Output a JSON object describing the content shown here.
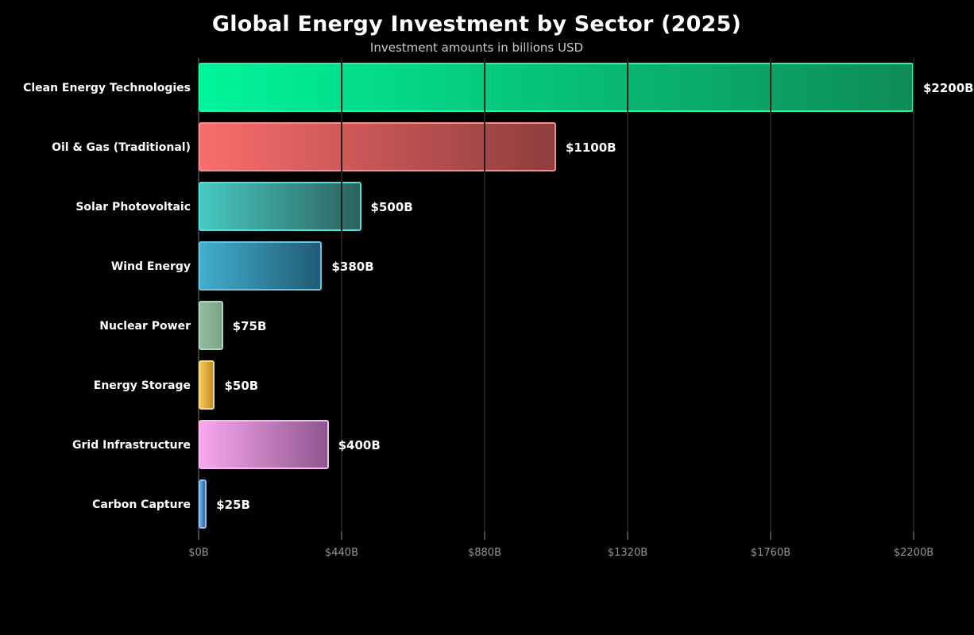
{
  "chart_data": {
    "type": "bar",
    "orientation": "horizontal",
    "title": "Global Energy Investment by Sector (2025)",
    "subtitle": "Investment amounts in billions USD",
    "categories": [
      "Clean Energy Technologies",
      "Oil & Gas (Traditional)",
      "Solar Photovoltaic",
      "Wind Energy",
      "Nuclear Power",
      "Energy Storage",
      "Grid Infrastructure",
      "Carbon Capture"
    ],
    "values": [
      2200,
      1100,
      500,
      380,
      75,
      50,
      400,
      25
    ],
    "value_labels": [
      "$2200B",
      "$1100B",
      "$500B",
      "$380B",
      "$75B",
      "$50B",
      "$400B",
      "$25B"
    ],
    "bar_styles": [
      {
        "gradient_start": "#00f59b",
        "gradient_end": "#0e8c55",
        "border": "#2df0a6"
      },
      {
        "gradient_start": "#fa6d6d",
        "gradient_end": "#8f3d3d",
        "border": "#f98d8d"
      },
      {
        "gradient_start": "#47c9c2",
        "gradient_end": "#2d615e",
        "border": "#55dfd7"
      },
      {
        "gradient_start": "#42aecd",
        "gradient_end": "#215b75",
        "border": "#67c6e3"
      },
      {
        "gradient_start": "#93bba0",
        "gradient_end": "#7ba388",
        "border": "#b2d5bf"
      },
      {
        "gradient_start": "#f4c753",
        "gradient_end": "#c38d2a",
        "border": "#f6dc8d"
      },
      {
        "gradient_start": "#f8a8ec",
        "gradient_end": "#8f5590",
        "border": "#f6bcf0"
      },
      {
        "gradient_start": "#68a8e2",
        "gradient_end": "#2f67a8",
        "border": "#8ec1f2"
      }
    ],
    "xlim": [
      0,
      2200
    ],
    "x_tick_values": [
      0,
      440,
      880,
      1320,
      1760,
      2200
    ],
    "x_tick_labels": [
      "$0B",
      "$440B",
      "$880B",
      "$1320B",
      "$1760B",
      "$2200B"
    ],
    "grid": true,
    "legend": null,
    "layout": {
      "bar_labels_position": "right-of-bar",
      "category_labels_position": "left-of-plot"
    },
    "colors": {
      "background": "#000000",
      "title_text": "#ffffff",
      "subtitle_text": "#c9c9c9",
      "category_text": "#ffffff",
      "value_text": "#ffffff",
      "tick_text": "#969696",
      "gridline": "#1f1f1f",
      "axis_line": "#3c3c3c"
    }
  }
}
